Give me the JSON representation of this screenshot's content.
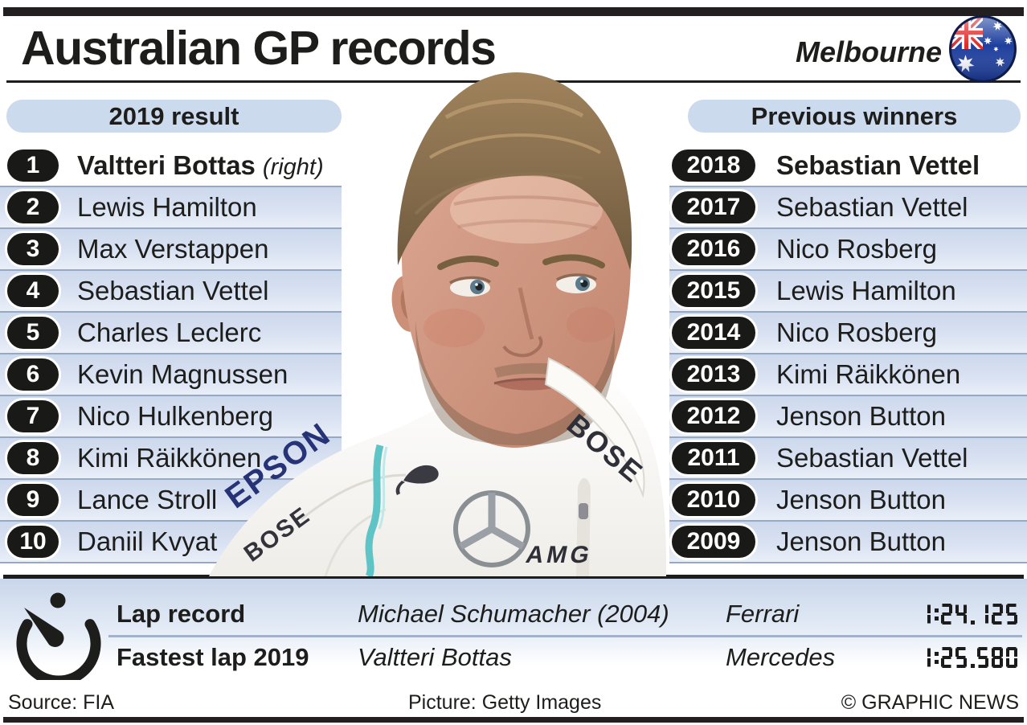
{
  "header": {
    "title": "Australian GP records",
    "location": "Melbourne"
  },
  "left_panel": {
    "heading": "2019 result",
    "rows": [
      {
        "rank": "1",
        "name": "Valtteri Bottas",
        "note": "(right)"
      },
      {
        "rank": "2",
        "name": "Lewis Hamilton"
      },
      {
        "rank": "3",
        "name": "Max Verstappen"
      },
      {
        "rank": "4",
        "name": "Sebastian Vettel"
      },
      {
        "rank": "5",
        "name": "Charles Leclerc"
      },
      {
        "rank": "6",
        "name": "Kevin Magnussen"
      },
      {
        "rank": "7",
        "name": "Nico Hulkenberg"
      },
      {
        "rank": "8",
        "name": "Kimi Räikkönen"
      },
      {
        "rank": "9",
        "name": "Lance Stroll"
      },
      {
        "rank": "10",
        "name": "Daniil Kvyat"
      }
    ]
  },
  "right_panel": {
    "heading": "Previous winners",
    "rows": [
      {
        "rank": "2018",
        "name": "Sebastian Vettel"
      },
      {
        "rank": "2017",
        "name": "Sebastian Vettel"
      },
      {
        "rank": "2016",
        "name": "Nico Rosberg"
      },
      {
        "rank": "2015",
        "name": "Lewis Hamilton"
      },
      {
        "rank": "2014",
        "name": "Nico Rosberg"
      },
      {
        "rank": "2013",
        "name": "Kimi Räikkönen"
      },
      {
        "rank": "2012",
        "name": "Jenson Button"
      },
      {
        "rank": "2011",
        "name": "Sebastian Vettel"
      },
      {
        "rank": "2010",
        "name": "Jenson Button"
      },
      {
        "rank": "2009",
        "name": "Jenson Button"
      }
    ]
  },
  "records": {
    "rows": [
      {
        "label": "Lap record",
        "driver": "Michael Schumacher (2004)",
        "team": "Ferrari",
        "time": "1:24.125"
      },
      {
        "label": "Fastest lap 2019",
        "driver": "Valtteri Bottas",
        "team": "Mercedes",
        "time": "1:25.580"
      }
    ]
  },
  "photo": {
    "subject": "Valtteri Bottas",
    "visible_logos": [
      "EPSON",
      "BOSE",
      "AMG"
    ]
  },
  "footer": {
    "source": "Source: FIA",
    "picture": "Picture: Getty Images",
    "copyright": "© GRAPHIC NEWS"
  },
  "colors": {
    "ink": "#1d1d1b",
    "accent_blue": "#ccdaee",
    "row_gradient_top": "#ccd8ec",
    "row_line": "#96a8c3",
    "teal_stripe": "#5fc4c6"
  }
}
